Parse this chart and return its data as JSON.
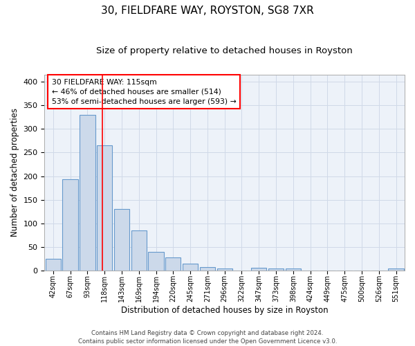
{
  "title1": "30, FIELDFARE WAY, ROYSTON, SG8 7XR",
  "title2": "Size of property relative to detached houses in Royston",
  "xlabel": "Distribution of detached houses by size in Royston",
  "ylabel": "Number of detached properties",
  "bar_labels": [
    "42sqm",
    "67sqm",
    "93sqm",
    "118sqm",
    "143sqm",
    "169sqm",
    "194sqm",
    "220sqm",
    "245sqm",
    "271sqm",
    "296sqm",
    "322sqm",
    "347sqm",
    "373sqm",
    "398sqm",
    "424sqm",
    "449sqm",
    "475sqm",
    "500sqm",
    "526sqm",
    "551sqm"
  ],
  "bar_values": [
    25,
    193,
    330,
    265,
    130,
    85,
    40,
    27,
    15,
    7,
    4,
    0,
    5,
    4,
    4,
    0,
    0,
    0,
    0,
    0,
    4
  ],
  "bar_color": "#ccd9ea",
  "bar_edge_color": "#6699cc",
  "grid_color": "#d0d9e8",
  "bg_color": "#edf2f9",
  "annotation_text": "30 FIELDFARE WAY: 115sqm\n← 46% of detached houses are smaller (514)\n53% of semi-detached houses are larger (593) →",
  "annotation_box_color": "white",
  "annotation_box_edge": "red",
  "footer1": "Contains HM Land Registry data © Crown copyright and database right 2024.",
  "footer2": "Contains public sector information licensed under the Open Government Licence v3.0.",
  "ylim": [
    0,
    415
  ],
  "title1_fontsize": 11,
  "title2_fontsize": 9.5
}
